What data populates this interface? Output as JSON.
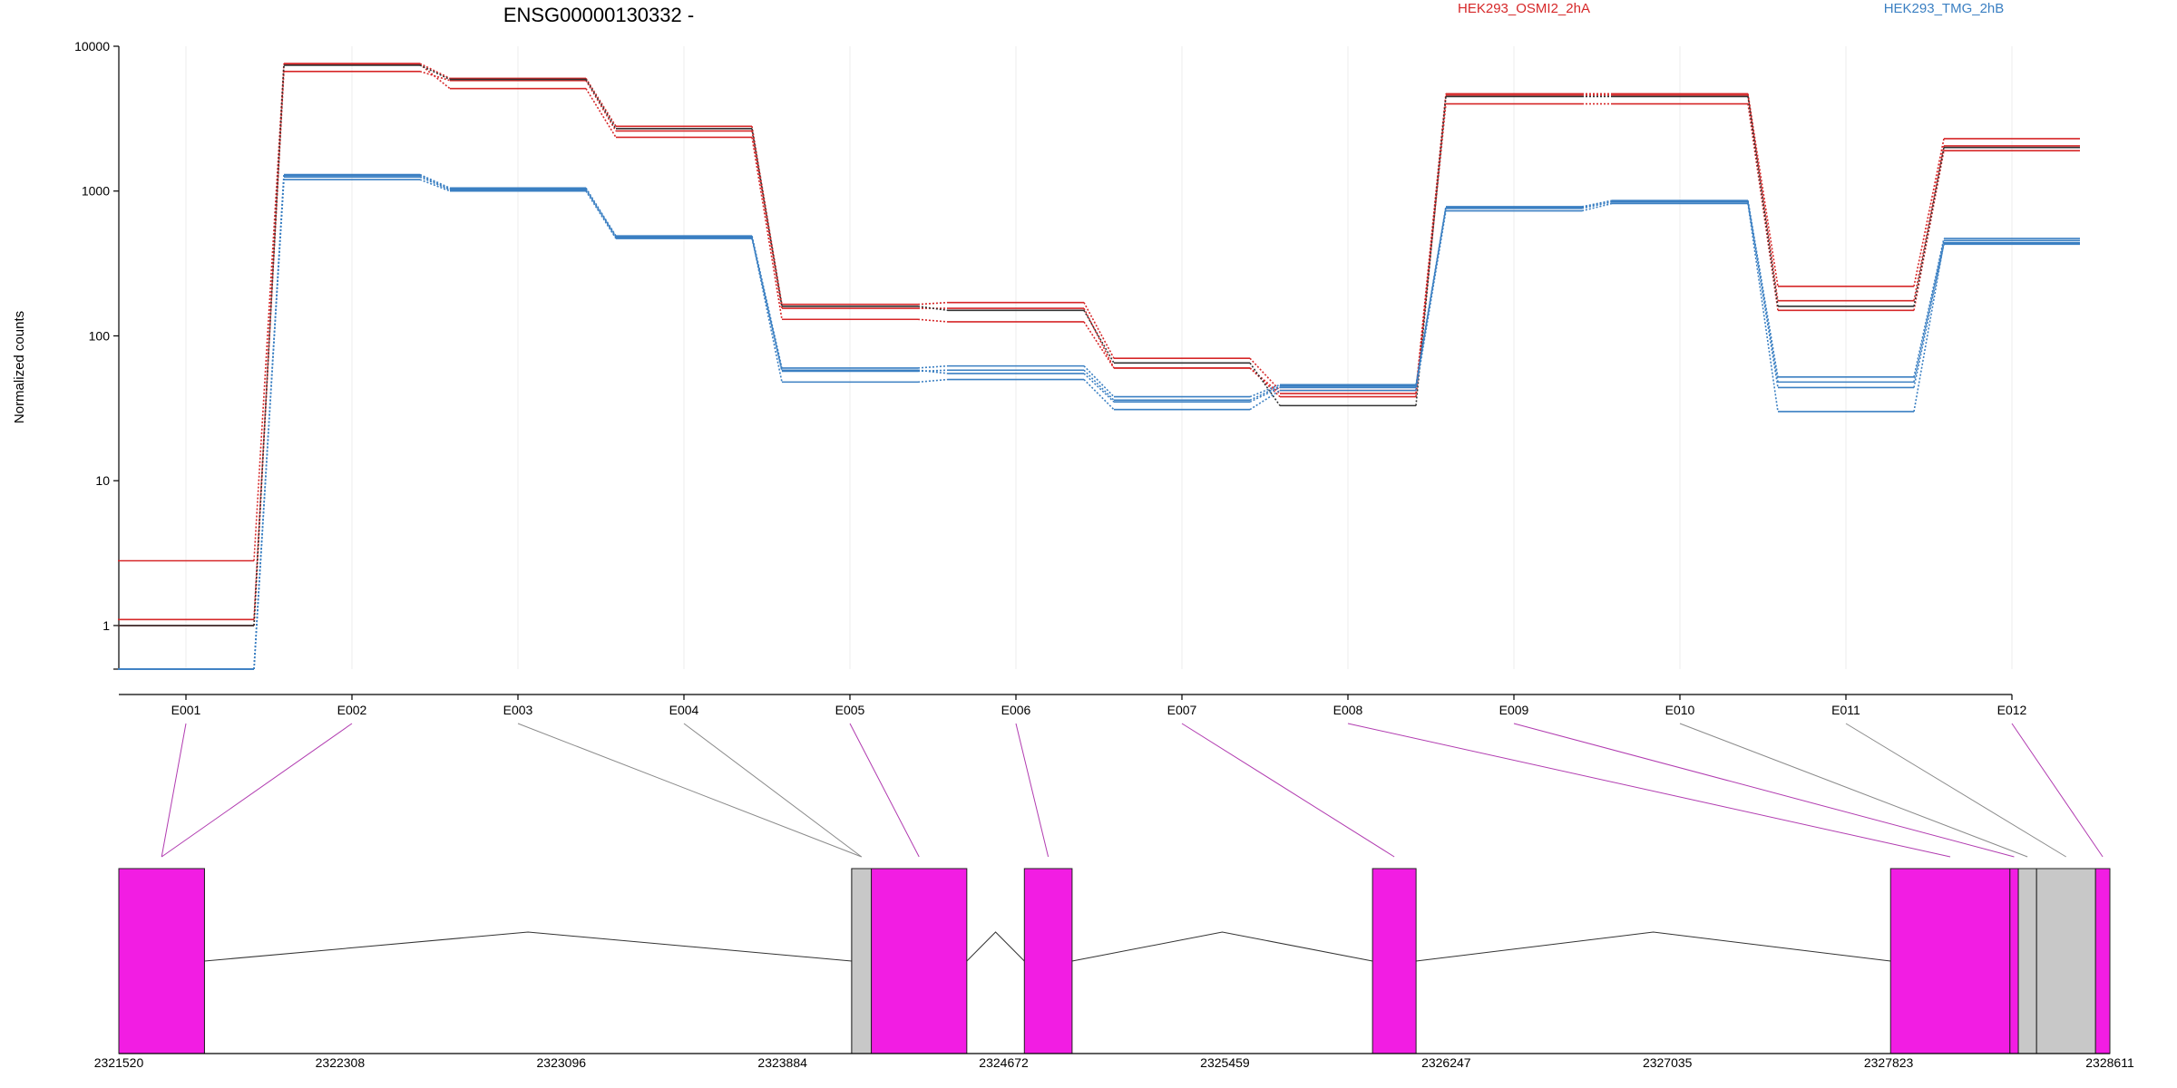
{
  "chart_data": {
    "type": "line",
    "title": "ENSG00000130332 -",
    "ylabel": "Normalized counts",
    "y_scale": "log",
    "ylim": [
      0.5,
      10000
    ],
    "y_ticks": [
      1,
      10,
      100,
      1000,
      10000
    ],
    "y_tick_labels": [
      "1",
      "10",
      "100",
      "1000",
      "10000"
    ],
    "categories": [
      "E001",
      "E002",
      "E003",
      "E004",
      "E005",
      "E006",
      "E007",
      "E008",
      "E009",
      "E010",
      "E011",
      "E012"
    ],
    "series": [
      {
        "name": "HEK293_OSMI2_2hA",
        "group": "HEK293_OSMI2_2hA",
        "color": "#d62728",
        "values": [
          2.8,
          7600,
          6000,
          2800,
          165,
          170,
          70,
          42,
          4700,
          4700,
          220,
          2300
        ]
      },
      {
        "name": "",
        "group": "HEK293_OSMI2_2hA",
        "color": "#d62728",
        "values": [
          1.1,
          6700,
          5800,
          2600,
          155,
          155,
          60,
          40,
          4600,
          4600,
          175,
          2050
        ]
      },
      {
        "name": "",
        "group": "HEK293_OSMI2_2hA",
        "color": "#d62728",
        "values": [
          1.0,
          7500,
          5100,
          2350,
          130,
          125,
          60,
          38,
          4000,
          4000,
          150,
          1900
        ]
      },
      {
        "name": "",
        "group": "HEK293_OSMI2_2hA",
        "color": "#333333",
        "values": [
          1.0,
          7400,
          5900,
          2700,
          160,
          150,
          65,
          33,
          4500,
          4500,
          160,
          2000
        ]
      },
      {
        "name": "HEK293_TMG_2hB",
        "group": "HEK293_TMG_2hB",
        "color": "#3a7fc2",
        "values": [
          0.5,
          1300,
          1050,
          490,
          60,
          62,
          38,
          46,
          780,
          860,
          52,
          470
        ]
      },
      {
        "name": "",
        "group": "HEK293_TMG_2hB",
        "color": "#3a7fc2",
        "values": [
          0.5,
          1200,
          1000,
          470,
          58,
          55,
          35,
          44,
          760,
          840,
          44,
          430
        ]
      },
      {
        "name": "",
        "group": "HEK293_TMG_2hB",
        "color": "#3a7fc2",
        "values": [
          0.5,
          1250,
          1020,
          480,
          48,
          50,
          31,
          42,
          730,
          820,
          30,
          440
        ]
      },
      {
        "name": "",
        "group": "HEK293_TMG_2hB",
        "color": "#3a7fc2",
        "values": [
          0.5,
          1280,
          1030,
          485,
          57,
          58,
          36,
          45,
          770,
          850,
          48,
          455
        ]
      }
    ],
    "legend": [
      {
        "label": "HEK293_OSMI2_2hA",
        "color": "#d62728"
      },
      {
        "label": "HEK293_TMG_2hB",
        "color": "#3a7fc2"
      }
    ],
    "genome_track": {
      "range": [
        2321520,
        2328611
      ],
      "tick_labels": [
        "2321520",
        "2322308",
        "2323096",
        "2323884",
        "2324672",
        "2325459",
        "2326247",
        "2327035",
        "2327823",
        "2328611"
      ],
      "exon_color": "#f21de3",
      "other_color": "#c8c8c8",
      "exons": [
        {
          "id": "E001",
          "start": 2321520,
          "end": 2321825,
          "tested": true
        },
        {
          "id": "E002",
          "start": 2321520,
          "end": 2321825,
          "tested": true
        },
        {
          "id": "E003",
          "start": 2324130,
          "end": 2324200,
          "tested": false
        },
        {
          "id": "E004",
          "start": 2324130,
          "end": 2324200,
          "tested": false
        },
        {
          "id": "E005",
          "start": 2324200,
          "end": 2324540,
          "tested": true
        },
        {
          "id": "E006",
          "start": 2324745,
          "end": 2324915,
          "tested": true
        },
        {
          "id": "E007",
          "start": 2325985,
          "end": 2326140,
          "tested": true
        },
        {
          "id": "E008",
          "start": 2327830,
          "end": 2328255,
          "tested": true
        },
        {
          "id": "E009",
          "start": 2328255,
          "end": 2328285,
          "tested": true
        },
        {
          "id": "E010",
          "start": 2328285,
          "end": 2328350,
          "tested": false
        },
        {
          "id": "E011",
          "start": 2328350,
          "end": 2328560,
          "tested": false
        },
        {
          "id": "E012",
          "start": 2328560,
          "end": 2328611,
          "tested": true
        }
      ]
    }
  }
}
